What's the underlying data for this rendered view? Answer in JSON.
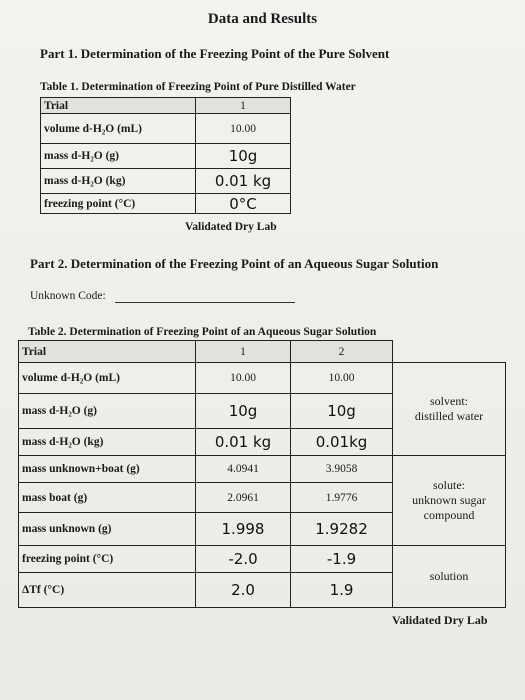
{
  "header": {
    "title": "Data and Results"
  },
  "part1": {
    "heading": "Part 1. Determination of the Freezing Point of the Pure Solvent",
    "table": {
      "caption": "Table 1. Determination of Freezing Point of Pure Distilled Water",
      "header": [
        "Trial",
        "1"
      ],
      "rows": [
        [
          "volume d-H₂O (mL)",
          "10.00"
        ],
        [
          "mass d-H₂O (g)",
          "10g"
        ],
        [
          "mass d-H₂O (kg)",
          "0.01 kg"
        ],
        [
          "freezing point (°C)",
          "0°C"
        ]
      ]
    },
    "stamp": "Validated Dry Lab"
  },
  "part2": {
    "heading": "Part 2. Determination of the Freezing Point of an Aqueous Sugar Solution",
    "unknown_code_label": "Unknown Code:",
    "table": {
      "caption": "Table 2. Determination of Freezing Point of an Aqueous Sugar Solution",
      "header": [
        "Trial",
        "1",
        "2"
      ],
      "rows": [
        [
          "volume d-H₂O (mL)",
          "10.00",
          "10.00"
        ],
        [
          "mass d-H₂O (g)",
          "10g",
          "10g"
        ],
        [
          "mass d-H₂O (kg)",
          "0.01 kg",
          "0.01kg"
        ],
        [
          "mass unknown+boat (g)",
          "4.0941",
          "3.9058"
        ],
        [
          "mass boat (g)",
          "2.0961",
          "1.9776"
        ],
        [
          "mass unknown (g)",
          "1.998",
          "1.9282"
        ],
        [
          "freezing point (°C)",
          "-2.0",
          "-1.9"
        ],
        [
          "ΔTf (°C)",
          "2.0",
          "1.9"
        ]
      ],
      "notes": [
        [
          "solvent:",
          "distilled water"
        ],
        [
          "solute:",
          "unknown sugar",
          "compound"
        ],
        [
          "solution"
        ]
      ]
    },
    "stamp": "Validated Dry Lab"
  }
}
